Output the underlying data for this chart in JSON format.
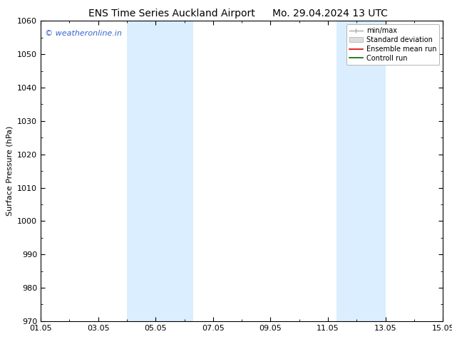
{
  "title_left": "ENS Time Series Auckland Airport",
  "title_right": "Mo. 29.04.2024 13 UTC",
  "ylabel": "Surface Pressure (hPa)",
  "ylim": [
    970,
    1060
  ],
  "yticks": [
    970,
    980,
    990,
    1000,
    1010,
    1020,
    1030,
    1040,
    1050,
    1060
  ],
  "xlim_start": 0,
  "xlim_end": 14,
  "xtick_positions": [
    0,
    2,
    4,
    6,
    8,
    10,
    12,
    14
  ],
  "xtick_labels": [
    "01.05",
    "03.05",
    "05.05",
    "07.05",
    "09.05",
    "11.05",
    "13.05",
    "15.05"
  ],
  "shaded_bands": [
    {
      "start": 3.0,
      "end": 5.3
    },
    {
      "start": 10.3,
      "end": 12.0
    }
  ],
  "shade_color": "#daeeff",
  "watermark_text": "© weatheronline.in",
  "watermark_color": "#3366cc",
  "legend_labels": [
    "min/max",
    "Standard deviation",
    "Ensemble mean run",
    "Controll run"
  ],
  "legend_line_colors": [
    "#aaaaaa",
    "#cccccc",
    "#dd0000",
    "#006600"
  ],
  "bg_color": "#ffffff",
  "plot_bg_color": "#ffffff",
  "title_fontsize": 10,
  "axis_fontsize": 8,
  "ylabel_fontsize": 8,
  "watermark_fontsize": 8,
  "legend_fontsize": 7
}
